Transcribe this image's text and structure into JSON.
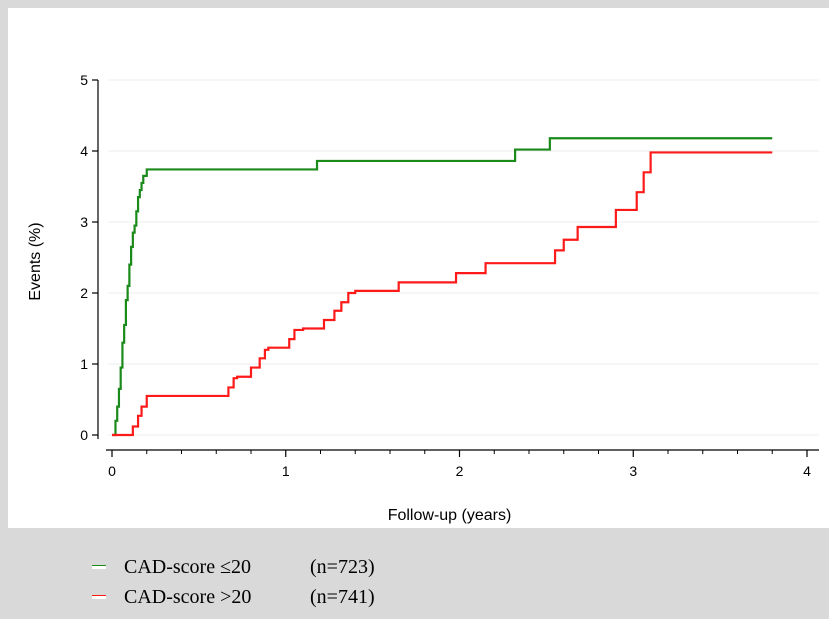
{
  "chart_data": {
    "type": "line",
    "xlabel": "Follow-up (years)",
    "ylabel": "Events (%)",
    "xlim": [
      0,
      4
    ],
    "ylim": [
      0,
      5
    ],
    "xticks": [
      "0",
      "1",
      "2",
      "3",
      "4"
    ],
    "yticks": [
      "0",
      "1",
      "2",
      "3",
      "4",
      "5"
    ],
    "grid": "horizontal light",
    "legend_placement": "bottom",
    "series": [
      {
        "name": "CAD-score ≤20",
        "n_label": "(n=723)",
        "color": "#1a8a1a",
        "x": [
          0,
          0.02,
          0.03,
          0.04,
          0.05,
          0.06,
          0.07,
          0.08,
          0.09,
          0.1,
          0.11,
          0.12,
          0.13,
          0.14,
          0.15,
          0.16,
          0.17,
          0.18,
          0.2,
          1.18,
          2.32,
          2.52,
          3.8
        ],
        "y": [
          0,
          0.2,
          0.4,
          0.65,
          0.95,
          1.3,
          1.55,
          1.9,
          2.1,
          2.4,
          2.65,
          2.85,
          2.95,
          3.15,
          3.35,
          3.45,
          3.55,
          3.65,
          3.74,
          3.86,
          4.02,
          4.18,
          4.18
        ]
      },
      {
        "name": "CAD-score >20",
        "n_label": "(n=741)",
        "color": "#ff1a1a",
        "x": [
          0,
          0.12,
          0.15,
          0.17,
          0.2,
          0.67,
          0.7,
          0.72,
          0.8,
          0.85,
          0.88,
          0.9,
          1.02,
          1.05,
          1.1,
          1.22,
          1.28,
          1.32,
          1.36,
          1.4,
          1.65,
          1.98,
          2.15,
          2.55,
          2.6,
          2.68,
          2.9,
          3.02,
          3.06,
          3.1,
          3.8
        ],
        "y": [
          0,
          0.12,
          0.27,
          0.4,
          0.55,
          0.67,
          0.8,
          0.82,
          0.95,
          1.08,
          1.2,
          1.23,
          1.35,
          1.48,
          1.5,
          1.62,
          1.75,
          1.87,
          2.0,
          2.03,
          2.15,
          2.28,
          2.42,
          2.6,
          2.75,
          2.93,
          3.17,
          3.42,
          3.7,
          3.98,
          3.98
        ]
      }
    ]
  }
}
